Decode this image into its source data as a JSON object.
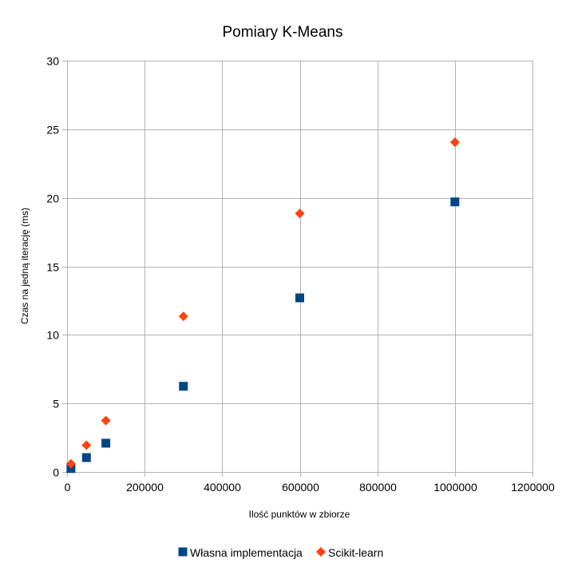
{
  "chart_data": {
    "type": "scatter",
    "title": "Pomiary K-Means",
    "xlabel": "Ilość punktów w zbiorze",
    "ylabel": "Czas na jedną iterację (ms)",
    "xlim": [
      0,
      1200000
    ],
    "ylim": [
      0,
      30
    ],
    "x_ticks": [
      0,
      200000,
      400000,
      600000,
      800000,
      1000000,
      1200000
    ],
    "x_tick_labels": [
      "0",
      "200000",
      "400000",
      "600000",
      "800000",
      "1000000",
      "1200000"
    ],
    "y_ticks": [
      0,
      5,
      10,
      15,
      20,
      25,
      30
    ],
    "y_tick_labels": [
      "0",
      "5",
      "10",
      "15",
      "20",
      "25",
      "30"
    ],
    "grid": true,
    "legend_position": "bottom",
    "series": [
      {
        "name": "Własna implementacja",
        "marker": "square",
        "color": "#004586",
        "points": [
          {
            "x": 10000,
            "y": 0.25
          },
          {
            "x": 50000,
            "y": 1.05
          },
          {
            "x": 100000,
            "y": 2.1
          },
          {
            "x": 300000,
            "y": 6.25
          },
          {
            "x": 600000,
            "y": 12.7
          },
          {
            "x": 1000000,
            "y": 19.7
          }
        ]
      },
      {
        "name": "Scikit-learn",
        "marker": "diamond",
        "color": "#ff420e",
        "points": [
          {
            "x": 10000,
            "y": 0.6
          },
          {
            "x": 50000,
            "y": 1.95
          },
          {
            "x": 100000,
            "y": 3.75
          },
          {
            "x": 300000,
            "y": 11.35
          },
          {
            "x": 600000,
            "y": 18.85
          },
          {
            "x": 1000000,
            "y": 24.05
          }
        ]
      }
    ]
  }
}
